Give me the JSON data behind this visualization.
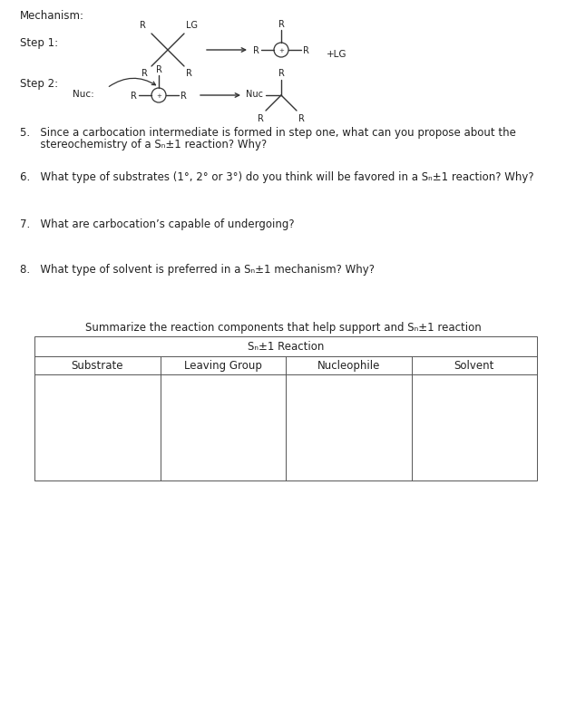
{
  "bg_color": "#ffffff",
  "text_color": "#222222",
  "mechanism_label": "Mechanism:",
  "step1_label": "Step 1:",
  "step2_label": "Step 2:",
  "q5_line1": "5.   Since a carbocation intermediate is formed in step one, what can you propose about the",
  "q5_line2": "      stereochemistry of a Sₙ±1 reaction? Why?",
  "q6": "6.   What type of substrates (1°, 2° or 3°) do you think will be favored in a Sₙ±1 reaction? Why?",
  "q7": "7.   What are carbocation’s capable of undergoing?",
  "q8": "8.   What type of solvent is preferred in a Sₙ±1 mechanism? Why?",
  "summary_text": "Summarize the reaction components that help support and Sₙ±1 reaction",
  "table_header": "Sₙ±1 Reaction",
  "table_cols": [
    "Substrate",
    "Leaving Group",
    "Nucleophile",
    "Solvent"
  ],
  "fs_body": 8.5,
  "fs_chem": 7.0,
  "fs_chem_label": 7.5
}
